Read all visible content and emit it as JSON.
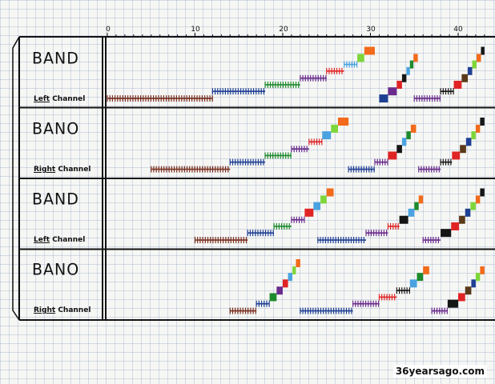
{
  "sheet": {
    "watermark": "36yearsago.com",
    "axis_ticks": [
      "0",
      "10",
      "20",
      "30",
      "40"
    ]
  },
  "panels": [
    {
      "title": "BAND",
      "channel_side": "Left",
      "channel_word": "Channel"
    },
    {
      "title": "BANO",
      "channel_side": "Right",
      "channel_word": "Channel"
    },
    {
      "title": "BAND",
      "channel_side": "Left",
      "channel_word": "Channel"
    },
    {
      "title": "BANO",
      "channel_side": "Right",
      "channel_word": "Channel"
    }
  ],
  "colors": {
    "brown": "#7a2e1f",
    "blue": "#1f3f93",
    "green": "#1e8a2e",
    "purple": "#6a2b8c",
    "red": "#e02424",
    "sky": "#4aa3e0",
    "lime": "#7fd63a",
    "orange": "#f26a1b",
    "black": "#151515",
    "dbrown": "#5a3a1a"
  },
  "chart_data": {
    "type": "table",
    "x_range": [
      0,
      43
    ],
    "note_series": [
      {
        "panel": 0,
        "segments": [
          {
            "color": "brown",
            "x": [
              0,
              12
            ],
            "level": 0.05
          },
          {
            "color": "blue",
            "x": [
              12,
              18
            ],
            "level": 0.18
          },
          {
            "color": "green",
            "x": [
              18,
              22
            ],
            "level": 0.3
          },
          {
            "color": "purple",
            "x": [
              22,
              25
            ],
            "level": 0.42
          },
          {
            "color": "red",
            "x": [
              25,
              27
            ],
            "level": 0.55
          },
          {
            "color": "sky",
            "x": [
              27,
              28.5
            ],
            "level": 0.67
          },
          {
            "color": "lime",
            "x": [
              28.5,
              29.3
            ],
            "level": 0.79
          },
          {
            "color": "orange",
            "x": [
              29.3,
              30.5
            ],
            "level": 0.92
          },
          {
            "color": "blue",
            "x": [
              31,
              32
            ],
            "level": 0.05
          },
          {
            "color": "purple",
            "x": [
              32,
              33
            ],
            "level": 0.18
          },
          {
            "color": "red",
            "x": [
              33,
              33.6
            ],
            "level": 0.3
          },
          {
            "color": "black",
            "x": [
              33.6,
              34.1
            ],
            "level": 0.42
          },
          {
            "color": "sky",
            "x": [
              34.1,
              34.5
            ],
            "level": 0.55
          },
          {
            "color": "green",
            "x": [
              34.5,
              34.9
            ],
            "level": 0.67
          },
          {
            "color": "orange",
            "x": [
              34.9,
              35.4
            ],
            "level": 0.79
          },
          {
            "color": "purple",
            "x": [
              35,
              38
            ],
            "level": 0.05
          },
          {
            "color": "black",
            "x": [
              38,
              39.5
            ],
            "level": 0.18
          },
          {
            "color": "red",
            "x": [
              39.5,
              40.4
            ],
            "level": 0.3
          },
          {
            "color": "dbrown",
            "x": [
              40.4,
              41.1
            ],
            "level": 0.42
          },
          {
            "color": "blue",
            "x": [
              41.1,
              41.6
            ],
            "level": 0.55
          },
          {
            "color": "lime",
            "x": [
              41.6,
              42.1
            ],
            "level": 0.67
          },
          {
            "color": "orange",
            "x": [
              42.1,
              42.6
            ],
            "level": 0.79
          },
          {
            "color": "black",
            "x": [
              42.6,
              43
            ],
            "level": 0.92
          }
        ]
      },
      {
        "panel": 1,
        "segments": [
          {
            "color": "brown",
            "x": [
              5,
              14
            ],
            "level": 0.05
          },
          {
            "color": "blue",
            "x": [
              14,
              18
            ],
            "level": 0.18
          },
          {
            "color": "green",
            "x": [
              18,
              21
            ],
            "level": 0.3
          },
          {
            "color": "purple",
            "x": [
              21,
              23
            ],
            "level": 0.42
          },
          {
            "color": "red",
            "x": [
              23,
              24.5
            ],
            "level": 0.55
          },
          {
            "color": "sky",
            "x": [
              24.5,
              25.5
            ],
            "level": 0.67
          },
          {
            "color": "lime",
            "x": [
              25.5,
              26.3
            ],
            "level": 0.79
          },
          {
            "color": "orange",
            "x": [
              26.3,
              27.5
            ],
            "level": 0.92
          },
          {
            "color": "blue",
            "x": [
              27.5,
              30.5
            ],
            "level": 0.05
          },
          {
            "color": "purple",
            "x": [
              30.5,
              32
            ],
            "level": 0.18
          },
          {
            "color": "red",
            "x": [
              32,
              33
            ],
            "level": 0.3
          },
          {
            "color": "black",
            "x": [
              33,
              33.6
            ],
            "level": 0.42
          },
          {
            "color": "sky",
            "x": [
              33.6,
              34.1
            ],
            "level": 0.55
          },
          {
            "color": "green",
            "x": [
              34.1,
              34.6
            ],
            "level": 0.67
          },
          {
            "color": "orange",
            "x": [
              34.6,
              35.2
            ],
            "level": 0.79
          },
          {
            "color": "purple",
            "x": [
              35.5,
              38
            ],
            "level": 0.05
          },
          {
            "color": "black",
            "x": [
              38,
              39.3
            ],
            "level": 0.18
          },
          {
            "color": "red",
            "x": [
              39.3,
              40.2
            ],
            "level": 0.3
          },
          {
            "color": "dbrown",
            "x": [
              40.2,
              40.9
            ],
            "level": 0.42
          },
          {
            "color": "blue",
            "x": [
              40.9,
              41.5
            ],
            "level": 0.55
          },
          {
            "color": "lime",
            "x": [
              41.5,
              42
            ],
            "level": 0.67
          },
          {
            "color": "orange",
            "x": [
              42,
              42.5
            ],
            "level": 0.79
          },
          {
            "color": "black",
            "x": [
              42.5,
              43
            ],
            "level": 0.92
          }
        ]
      },
      {
        "panel": 2,
        "segments": [
          {
            "color": "brown",
            "x": [
              10,
              16
            ],
            "level": 0.05
          },
          {
            "color": "blue",
            "x": [
              16,
              19
            ],
            "level": 0.18
          },
          {
            "color": "green",
            "x": [
              19,
              21
            ],
            "level": 0.3
          },
          {
            "color": "purple",
            "x": [
              21,
              22.5
            ],
            "level": 0.42
          },
          {
            "color": "red",
            "x": [
              22.5,
              23.5
            ],
            "level": 0.55
          },
          {
            "color": "sky",
            "x": [
              23.5,
              24.3
            ],
            "level": 0.67
          },
          {
            "color": "lime",
            "x": [
              24.3,
              25
            ],
            "level": 0.79
          },
          {
            "color": "orange",
            "x": [
              25,
              25.8
            ],
            "level": 0.92
          },
          {
            "color": "blue",
            "x": [
              24,
              29.5
            ],
            "level": 0.05
          },
          {
            "color": "purple",
            "x": [
              29.5,
              32
            ],
            "level": 0.18
          },
          {
            "color": "red",
            "x": [
              32,
              33.3
            ],
            "level": 0.3
          },
          {
            "color": "black",
            "x": [
              33.3,
              34.3
            ],
            "level": 0.42
          },
          {
            "color": "sky",
            "x": [
              34.3,
              35
            ],
            "level": 0.55
          },
          {
            "color": "green",
            "x": [
              35,
              35.5
            ],
            "level": 0.67
          },
          {
            "color": "orange",
            "x": [
              35.5,
              36
            ],
            "level": 0.79
          },
          {
            "color": "purple",
            "x": [
              36,
              38
            ],
            "level": 0.05
          },
          {
            "color": "black",
            "x": [
              38,
              39.2
            ],
            "level": 0.18
          },
          {
            "color": "red",
            "x": [
              39.2,
              40.1
            ],
            "level": 0.3
          },
          {
            "color": "dbrown",
            "x": [
              40.1,
              40.8
            ],
            "level": 0.42
          },
          {
            "color": "blue",
            "x": [
              40.8,
              41.4
            ],
            "level": 0.55
          },
          {
            "color": "lime",
            "x": [
              41.4,
              42
            ],
            "level": 0.67
          },
          {
            "color": "orange",
            "x": [
              42,
              42.5
            ],
            "level": 0.79
          },
          {
            "color": "black",
            "x": [
              42.5,
              43
            ],
            "level": 0.92
          }
        ]
      },
      {
        "panel": 3,
        "segments": [
          {
            "color": "brown",
            "x": [
              14,
              17
            ],
            "level": 0.05
          },
          {
            "color": "blue",
            "x": [
              17,
              18.5
            ],
            "level": 0.18
          },
          {
            "color": "green",
            "x": [
              18.5,
              19.3
            ],
            "level": 0.3
          },
          {
            "color": "purple",
            "x": [
              19.3,
              20
            ],
            "level": 0.42
          },
          {
            "color": "red",
            "x": [
              20,
              20.6
            ],
            "level": 0.55
          },
          {
            "color": "sky",
            "x": [
              20.6,
              21.1
            ],
            "level": 0.67
          },
          {
            "color": "lime",
            "x": [
              21.1,
              21.5
            ],
            "level": 0.79
          },
          {
            "color": "orange",
            "x": [
              21.5,
              22
            ],
            "level": 0.92
          },
          {
            "color": "blue",
            "x": [
              22,
              28
            ],
            "level": 0.05
          },
          {
            "color": "purple",
            "x": [
              28,
              31
            ],
            "level": 0.18
          },
          {
            "color": "red",
            "x": [
              31,
              33
            ],
            "level": 0.3
          },
          {
            "color": "black",
            "x": [
              33,
              34.5
            ],
            "level": 0.42
          },
          {
            "color": "sky",
            "x": [
              34.5,
              35.3
            ],
            "level": 0.55
          },
          {
            "color": "green",
            "x": [
              35.3,
              36
            ],
            "level": 0.67
          },
          {
            "color": "orange",
            "x": [
              36,
              36.7
            ],
            "level": 0.79
          },
          {
            "color": "purple",
            "x": [
              37,
              38.8
            ],
            "level": 0.05
          },
          {
            "color": "black",
            "x": [
              38.8,
              40
            ],
            "level": 0.18
          },
          {
            "color": "red",
            "x": [
              40,
              40.8
            ],
            "level": 0.3
          },
          {
            "color": "dbrown",
            "x": [
              40.8,
              41.5
            ],
            "level": 0.42
          },
          {
            "color": "blue",
            "x": [
              41.5,
              42
            ],
            "level": 0.55
          },
          {
            "color": "lime",
            "x": [
              42,
              42.5
            ],
            "level": 0.67
          },
          {
            "color": "orange",
            "x": [
              42.5,
              43
            ],
            "level": 0.79
          }
        ]
      }
    ]
  }
}
